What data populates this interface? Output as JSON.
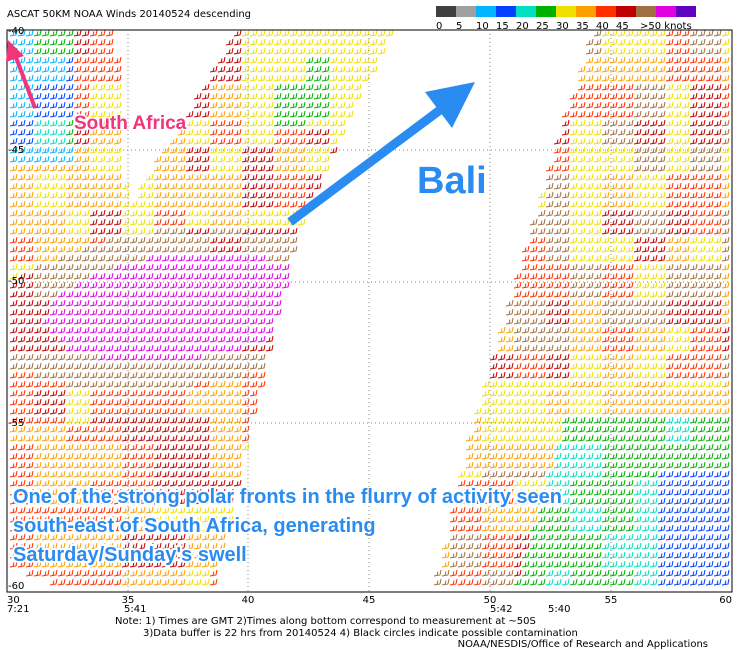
{
  "header": {
    "title": "ASCAT 50KM NOAA Winds 20140524 descending"
  },
  "legend": {
    "colors": [
      "#404040",
      "#a0a0a0",
      "#00b4ff",
      "#0040ff",
      "#00e0c0",
      "#00b000",
      "#f0e000",
      "#ffa000",
      "#ff3000",
      "#c00000",
      "#a07040",
      "#e000e0",
      "#6000c0"
    ],
    "labels": [
      "0",
      "5",
      "10",
      "15",
      "20",
      "25",
      "30",
      "35",
      "40",
      "45",
      ">50 knots"
    ]
  },
  "map": {
    "lon_labels": [
      "30",
      "35",
      "40",
      "45",
      "50",
      "55",
      "60"
    ],
    "lat_labels": [
      "-40",
      "-45",
      "-50",
      "-55",
      "-60"
    ],
    "times": [
      "7:21",
      "5:41",
      "5:42",
      "5:40"
    ]
  },
  "annotations": {
    "south_africa": "South Africa",
    "bali": "Bali",
    "caption": [
      "One of the strong polar fronts in the flurry of activity seen",
      "south-east of South Africa, generating",
      "Saturday/Sunday's swell"
    ]
  },
  "notes": [
    "Note: 1) Times are GMT 2)Times along bottom correspond to measurement at ~50S",
    "3)Data buffer is 22 hrs from 20140524 4) Black circles indicate possible contamination",
    "NOAA/NESDIS/Office of Research and Applications"
  ]
}
